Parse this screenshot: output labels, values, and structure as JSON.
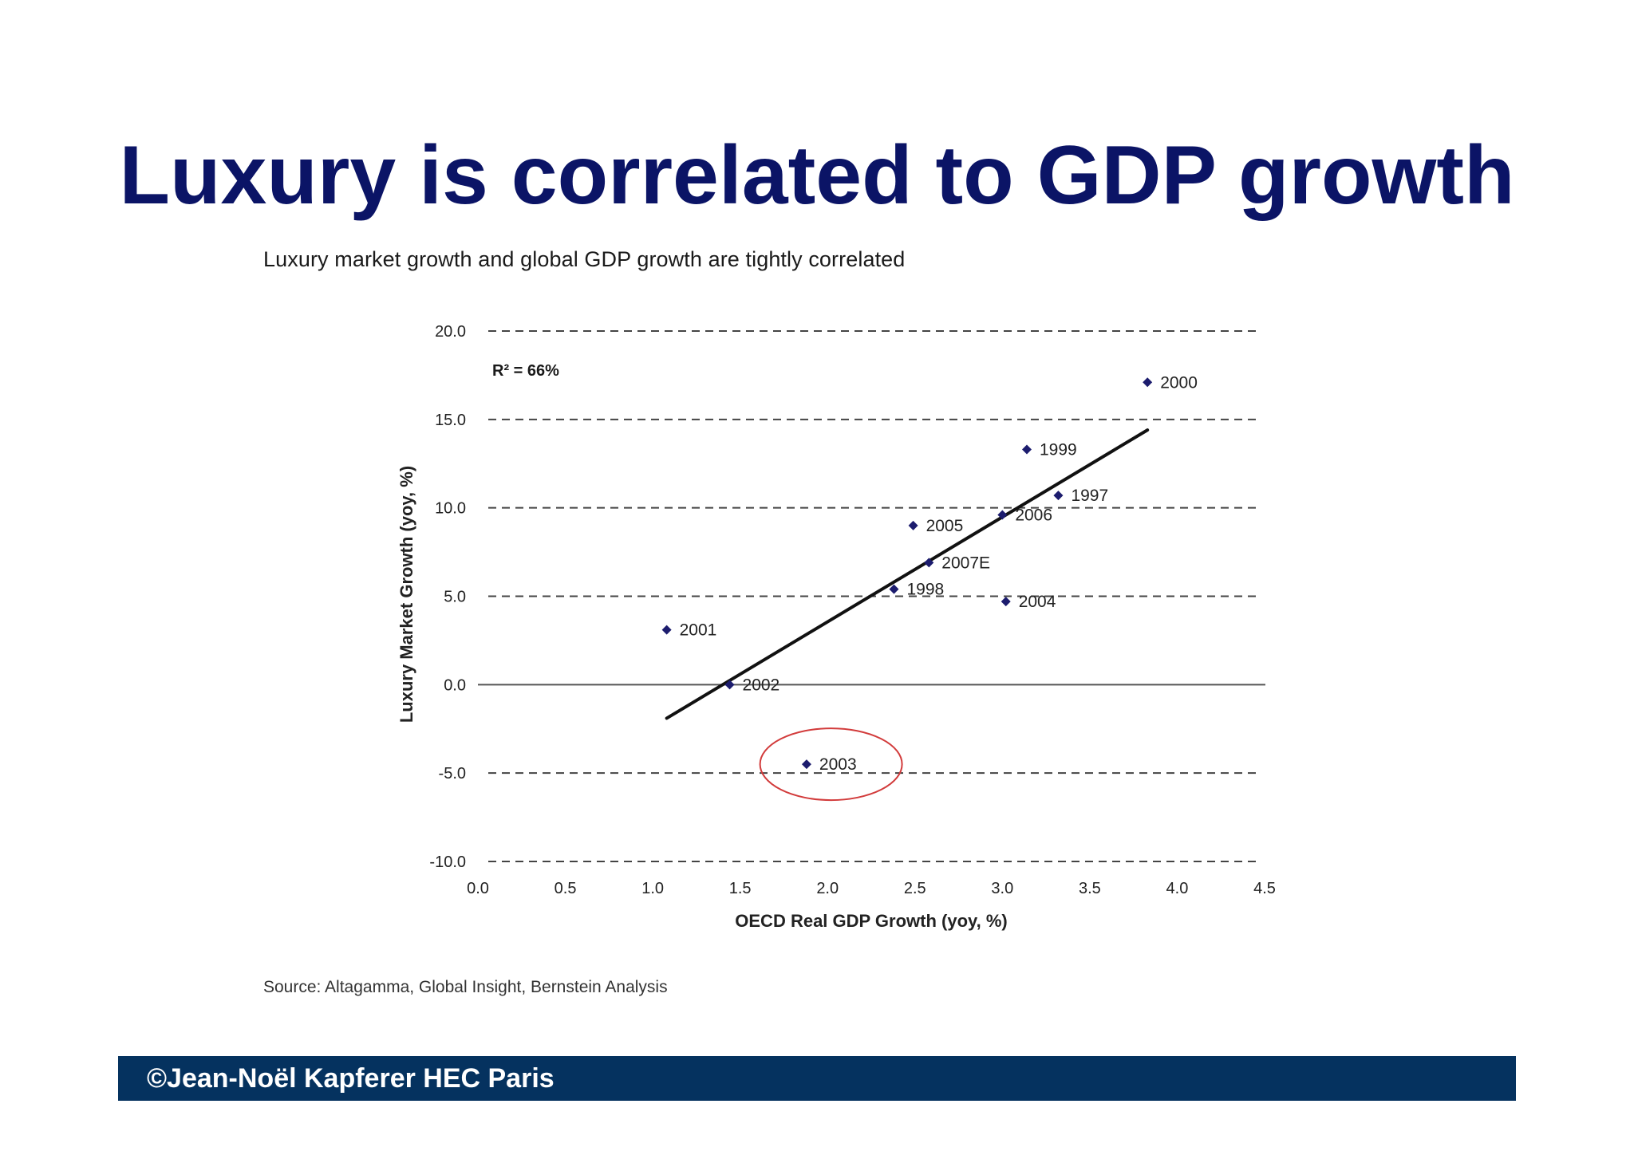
{
  "slide": {
    "title": "Luxury is correlated to GDP growth",
    "source": "Source: Altagamma, Global Insight, Bernstein Analysis",
    "footer": "©Jean-Noël Kapferer HEC Paris"
  },
  "colors": {
    "title": "#0b1466",
    "footer_bg": "#05325f",
    "marker": "#1c1c6e",
    "highlight_circle": "#d23b3b"
  },
  "chart_data": {
    "type": "scatter",
    "title": "Luxury market growth and global GDP growth are tightly correlated",
    "xlabel": "OECD Real GDP Growth (yoy, %)",
    "ylabel": "Luxury Market Growth (yoy, %)",
    "xlim": [
      0.0,
      4.5
    ],
    "ylim": [
      -10.0,
      20.0
    ],
    "xticks": [
      "0.0",
      "0.5",
      "1.0",
      "1.5",
      "2.0",
      "2.5",
      "3.0",
      "3.5",
      "4.0",
      "4.5"
    ],
    "yticks": [
      "20.0",
      "15.0",
      "10.0",
      "5.0",
      "0.0",
      "-5.0",
      "-10.0"
    ],
    "grid": "horizontal dashed",
    "r_squared_label": "R² = 66%",
    "points": [
      {
        "label": "1997",
        "x": 3.32,
        "y": 10.7
      },
      {
        "label": "1998",
        "x": 2.38,
        "y": 5.4
      },
      {
        "label": "1999",
        "x": 3.14,
        "y": 13.3
      },
      {
        "label": "2000",
        "x": 3.83,
        "y": 17.1
      },
      {
        "label": "2001",
        "x": 1.08,
        "y": 3.1
      },
      {
        "label": "2002",
        "x": 1.44,
        "y": 0.0
      },
      {
        "label": "2003",
        "x": 1.88,
        "y": -4.5
      },
      {
        "label": "2004",
        "x": 3.02,
        "y": 4.7
      },
      {
        "label": "2005",
        "x": 2.49,
        "y": 9.0
      },
      {
        "label": "2006",
        "x": 3.0,
        "y": 9.6
      },
      {
        "label": "2007E",
        "x": 2.58,
        "y": 6.9
      }
    ],
    "trendline": {
      "x": [
        1.08,
        3.83
      ],
      "y": [
        -1.9,
        14.4
      ]
    },
    "highlight": {
      "label": "2003",
      "x": 2.02,
      "y": -4.5
    }
  }
}
